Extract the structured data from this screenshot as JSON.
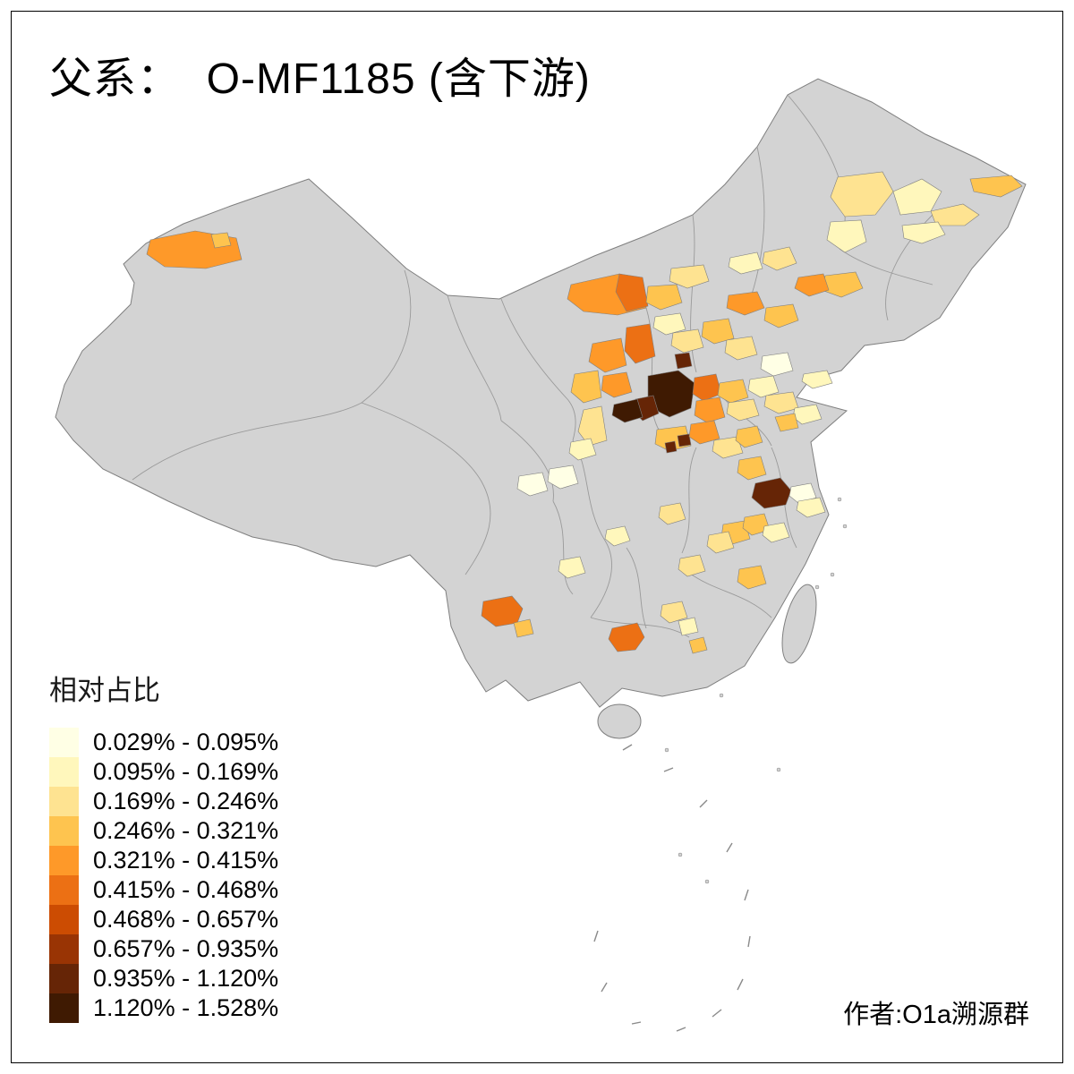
{
  "title": "父系：  O-MF1185 (含下游)",
  "credit": "作者:O1a溯源群",
  "legend": {
    "title": "相对占比",
    "items": [
      {
        "label": "0.029% - 0.095%",
        "color": "#FFFFE5"
      },
      {
        "label": "0.095% - 0.169%",
        "color": "#FFF7BC"
      },
      {
        "label": "0.169% - 0.246%",
        "color": "#FEE391"
      },
      {
        "label": "0.246% - 0.321%",
        "color": "#FEC44F"
      },
      {
        "label": "0.321% - 0.415%",
        "color": "#FE9929"
      },
      {
        "label": "0.415% - 0.468%",
        "color": "#EC7014"
      },
      {
        "label": "0.468% - 0.657%",
        "color": "#CC4C02"
      },
      {
        "label": "0.657% - 0.935%",
        "color": "#993404"
      },
      {
        "label": "0.935% - 1.120%",
        "color": "#662506"
      },
      {
        "label": "1.120% - 1.528%",
        "color": "#3F1A02"
      }
    ]
  },
  "map": {
    "base_fill": "#D3D3D3",
    "border_color": "#7F7F7F",
    "background": "#FFFFFF"
  }
}
